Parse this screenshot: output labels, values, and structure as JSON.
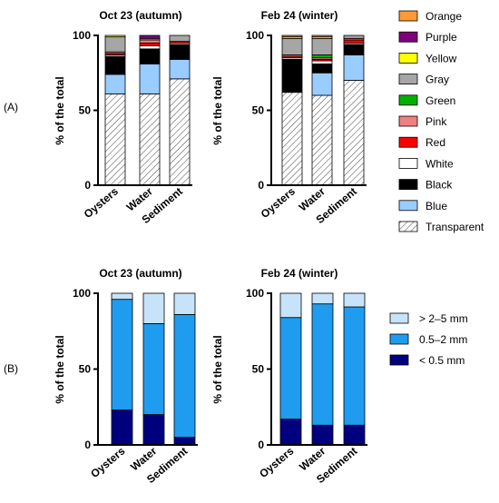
{
  "panel_labels": [
    "(A)",
    "(B)"
  ],
  "chart_data": [
    {
      "type": "bar",
      "stacked": true,
      "panel": "(A)",
      "title": "Oct 23 (autumn)",
      "ylabel": "% of the total",
      "ylim": [
        0,
        100
      ],
      "yticks": [
        0,
        50,
        100
      ],
      "categories": [
        "Oysters",
        "Water",
        "Sediment"
      ],
      "series": [
        {
          "name": "Transparent",
          "color": "#ffffff",
          "pattern": "hatch",
          "values": [
            61,
            61,
            71
          ]
        },
        {
          "name": "Blue",
          "color": "#99ccff",
          "values": [
            13,
            20,
            13
          ]
        },
        {
          "name": "Black",
          "color": "#000000",
          "values": [
            12,
            10,
            10
          ]
        },
        {
          "name": "White",
          "color": "#ffffff",
          "values": [
            1,
            2,
            1
          ]
        },
        {
          "name": "Red",
          "color": "#ff0000",
          "values": [
            1,
            2,
            1
          ]
        },
        {
          "name": "Pink",
          "color": "#f08080",
          "values": [
            1,
            2,
            0
          ]
        },
        {
          "name": "Green",
          "color": "#00b000",
          "values": [
            0,
            0,
            0
          ]
        },
        {
          "name": "Gray",
          "color": "#a6a6a6",
          "values": [
            10,
            1,
            4
          ]
        },
        {
          "name": "Yellow",
          "color": "#ffff00",
          "values": [
            1,
            0,
            0
          ]
        },
        {
          "name": "Purple",
          "color": "#800080",
          "values": [
            0,
            2,
            0
          ]
        },
        {
          "name": "Orange",
          "color": "#ff9933",
          "values": [
            0,
            0,
            0
          ]
        }
      ]
    },
    {
      "type": "bar",
      "stacked": true,
      "panel": "(A)",
      "title": "Feb 24 (winter)",
      "ylabel": "% of the total",
      "ylim": [
        0,
        100
      ],
      "yticks": [
        0,
        50,
        100
      ],
      "categories": [
        "Oysters",
        "Water",
        "Sediment"
      ],
      "series": [
        {
          "name": "Transparent",
          "color": "#ffffff",
          "pattern": "hatch",
          "values": [
            62,
            60,
            70
          ]
        },
        {
          "name": "Blue",
          "color": "#99ccff",
          "values": [
            0,
            15,
            17
          ]
        },
        {
          "name": "Black",
          "color": "#000000",
          "values": [
            22,
            6,
            7
          ]
        },
        {
          "name": "White",
          "color": "#ffffff",
          "values": [
            1,
            2,
            1
          ]
        },
        {
          "name": "Red",
          "color": "#ff0000",
          "values": [
            1,
            1,
            2
          ]
        },
        {
          "name": "Pink",
          "color": "#f08080",
          "values": [
            1,
            1,
            1
          ]
        },
        {
          "name": "Green",
          "color": "#00b000",
          "values": [
            0,
            2,
            0
          ]
        },
        {
          "name": "Gray",
          "color": "#a6a6a6",
          "values": [
            11,
            11,
            2
          ]
        },
        {
          "name": "Yellow",
          "color": "#ffff00",
          "values": [
            1,
            1,
            0
          ]
        },
        {
          "name": "Purple",
          "color": "#800080",
          "values": [
            0,
            0,
            0
          ]
        },
        {
          "name": "Orange",
          "color": "#ff9933",
          "values": [
            1,
            1,
            0
          ]
        }
      ]
    },
    {
      "type": "bar",
      "stacked": true,
      "panel": "(B)",
      "title": "Oct 23 (autumn)",
      "ylabel": "% of the total",
      "ylim": [
        0,
        100
      ],
      "yticks": [
        0,
        50,
        100
      ],
      "categories": [
        "Oysters",
        "Water",
        "Sediment"
      ],
      "series": [
        {
          "name": "< 0.5 mm",
          "color": "#00007f",
          "values": [
            23,
            20,
            5
          ]
        },
        {
          "name": "0.5–2 mm",
          "color": "#1f9cf0",
          "values": [
            73,
            60,
            81
          ]
        },
        {
          "name": "> 2–5 mm",
          "color": "#c7e3fa",
          "values": [
            4,
            20,
            14
          ]
        }
      ]
    },
    {
      "type": "bar",
      "stacked": true,
      "panel": "(B)",
      "title": "Feb 24 (winter)",
      "ylabel": "% of the total",
      "ylim": [
        0,
        100
      ],
      "yticks": [
        0,
        50,
        100
      ],
      "categories": [
        "Oysters",
        "Water",
        "Sediment"
      ],
      "series": [
        {
          "name": "< 0.5 mm",
          "color": "#00007f",
          "values": [
            17,
            13,
            13
          ]
        },
        {
          "name": "0.5–2 mm",
          "color": "#1f9cf0",
          "values": [
            67,
            80,
            78
          ]
        },
        {
          "name": "> 2–5 mm",
          "color": "#c7e3fa",
          "values": [
            16,
            7,
            9
          ]
        }
      ]
    }
  ],
  "legends": {
    "colors": {
      "items": [
        {
          "label": "Orange",
          "color": "#ff9933"
        },
        {
          "label": "Purple",
          "color": "#800080"
        },
        {
          "label": "Yellow",
          "color": "#ffff00"
        },
        {
          "label": "Gray",
          "color": "#a6a6a6"
        },
        {
          "label": "Green",
          "color": "#00b000"
        },
        {
          "label": "Pink",
          "color": "#f08080"
        },
        {
          "label": "Red",
          "color": "#ff0000"
        },
        {
          "label": "White",
          "color": "#ffffff"
        },
        {
          "label": "Black",
          "color": "#000000"
        },
        {
          "label": "Blue",
          "color": "#99ccff"
        },
        {
          "label": "Transparent",
          "color": "#ffffff",
          "pattern": "hatch"
        }
      ]
    },
    "sizes": {
      "items": [
        {
          "label": "> 2–5 mm",
          "color": "#c7e3fa"
        },
        {
          "label": "0.5–2 mm",
          "color": "#1f9cf0"
        },
        {
          "label": "< 0.5 mm",
          "color": "#00007f"
        }
      ]
    }
  }
}
